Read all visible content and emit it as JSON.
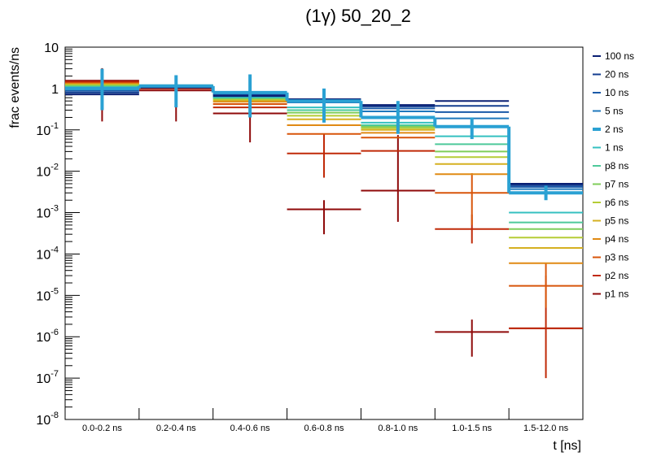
{
  "chart_data": {
    "type": "line",
    "title": "(1γ) 50_20_2",
    "xlabel": "t [ns]",
    "ylabel": "frac events/ns",
    "yscale": "log",
    "ylim": [
      1e-08,
      10
    ],
    "y_tick_labels": [
      {
        "base": "10",
        "exp": "-8",
        "value": 1e-08
      },
      {
        "base": "10",
        "exp": "-7",
        "value": 1e-07
      },
      {
        "base": "10",
        "exp": "-6",
        "value": 1e-06
      },
      {
        "base": "10",
        "exp": "-5",
        "value": 1e-05
      },
      {
        "base": "10",
        "exp": "-4",
        "value": 0.0001
      },
      {
        "base": "10",
        "exp": "-3",
        "value": 0.001
      },
      {
        "base": "10",
        "exp": "-2",
        "value": 0.01
      },
      {
        "base": "10",
        "exp": "-1",
        "value": 0.1
      },
      {
        "base": "1",
        "exp": "",
        "value": 1
      },
      {
        "base": "10",
        "exp": "",
        "value": 10
      }
    ],
    "categories": [
      "0.0-0.2 ns",
      "0.2-0.4 ns",
      "0.4-0.6 ns",
      "0.6-0.8 ns",
      "0.8-1.0 ns",
      "1.0-1.5 ns",
      "1.5-12.0 ns"
    ],
    "legend_position": "right",
    "series": [
      {
        "name": "100 ns",
        "color": "#0a1f73",
        "highlight": false,
        "values": [
          0.72,
          1.05,
          0.66,
          0.55,
          0.4,
          0.5,
          0.005
        ],
        "errors": []
      },
      {
        "name": "20 ns",
        "color": "#133d8f",
        "highlight": false,
        "values": [
          0.8,
          1.08,
          0.7,
          0.55,
          0.37,
          0.38,
          0.0046
        ],
        "errors": []
      },
      {
        "name": "10 ns",
        "color": "#1a5aa8",
        "highlight": false,
        "values": [
          0.88,
          1.1,
          0.73,
          0.5,
          0.33,
          0.27,
          0.0042
        ],
        "errors": []
      },
      {
        "name": "5 ns",
        "color": "#1f78bc",
        "highlight": false,
        "values": [
          0.95,
          1.12,
          0.76,
          0.46,
          0.28,
          0.19,
          0.0037
        ],
        "errors": []
      },
      {
        "name": "2 ns",
        "color": "#2aa1d3",
        "highlight": true,
        "values": [
          1.0,
          1.15,
          0.8,
          0.5,
          0.2,
          0.12,
          0.003
        ],
        "errors": [
          [
            0.3,
            3.0
          ],
          [
            0.35,
            2.1
          ],
          [
            0.2,
            2.2
          ],
          [
            0.15,
            1.0
          ],
          [
            0.08,
            0.5
          ],
          [
            0.06,
            0.2
          ],
          [
            0.002,
            0.0045
          ]
        ]
      },
      {
        "name": "1 ns",
        "color": "#34c0c0",
        "highlight": false,
        "values": [
          1.05,
          1.17,
          0.63,
          0.35,
          0.15,
          0.07,
          0.001
        ],
        "errors": []
      },
      {
        "name": "p8 ns",
        "color": "#4ec99a",
        "highlight": false,
        "values": [
          1.1,
          1.18,
          0.6,
          0.3,
          0.13,
          0.045,
          0.00058
        ],
        "errors": []
      },
      {
        "name": "p7 ns",
        "color": "#7fce5a",
        "highlight": false,
        "values": [
          1.15,
          1.2,
          0.58,
          0.26,
          0.12,
          0.03,
          0.0004
        ],
        "errors": []
      },
      {
        "name": "p6 ns",
        "color": "#b5cc35",
        "highlight": false,
        "values": [
          1.2,
          1.18,
          0.55,
          0.22,
          0.11,
          0.022,
          0.00025
        ],
        "errors": []
      },
      {
        "name": "p5 ns",
        "color": "#d5b020",
        "highlight": false,
        "values": [
          1.25,
          1.15,
          0.52,
          0.18,
          0.1,
          0.015,
          0.00014
        ],
        "errors": []
      },
      {
        "name": "p4 ns",
        "color": "#e08a14",
        "highlight": false,
        "values": [
          1.3,
          1.1,
          0.48,
          0.13,
          0.085,
          0.0085,
          6e-05
        ],
        "errors": []
      },
      {
        "name": "p3 ns",
        "color": "#d8550a",
        "highlight": false,
        "values": [
          1.35,
          1.05,
          0.42,
          0.08,
          0.065,
          0.003,
          1.7e-05
        ],
        "errors": [
          [],
          [],
          [],
          [],
          [],
          [
            0.0005,
            0.009
          ],
          [
            5e-06,
            6e-05
          ]
        ]
      },
      {
        "name": "p2 ns",
        "color": "#c02a08",
        "highlight": false,
        "values": [
          1.45,
          1.0,
          0.35,
          0.027,
          0.031,
          0.0004,
          1.6e-06
        ],
        "errors": [
          [],
          [],
          [],
          [
            0.007,
            0.08
          ],
          [],
          [
            0.00018,
            0.0009
          ],
          [
            1e-07,
            3e-05
          ]
        ]
      },
      {
        "name": "p1 ns",
        "color": "#8f0a0a",
        "highlight": false,
        "values": [
          1.55,
          0.9,
          0.25,
          0.0012,
          0.0034,
          1.3e-06,
          1.6e-06
        ],
        "errors": [
          [
            0.16,
            3.1
          ],
          [
            0.16,
            2.1
          ],
          [
            0.05,
            1.2
          ],
          [
            0.0003,
            0.002
          ],
          [
            0.0006,
            0.075
          ],
          [
            3.3e-07,
            2.6e-06
          ],
          []
        ]
      }
    ]
  }
}
